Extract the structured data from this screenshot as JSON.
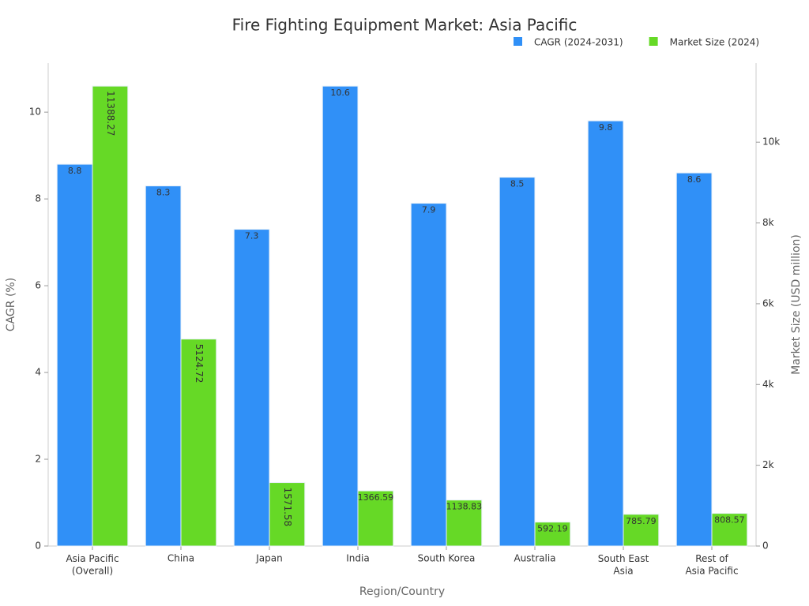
{
  "chart_data": {
    "type": "bar",
    "title": "Fire Fighting Equipment Market: Asia Pacific",
    "x_label": "Region/Country",
    "y_label": "CAGR (%)",
    "y2_label": "Market Size (USD million)",
    "categories": [
      "Asia Pacific\n(Overall)",
      "China",
      "Japan",
      "India",
      "South Korea",
      "Australia",
      "South East\nAsia",
      "Rest of\nAsia Pacific"
    ],
    "series": [
      {
        "name": "CAGR (2024-2031)",
        "color": "#3090f7",
        "values": [
          8.8,
          8.3,
          7.3,
          10.6,
          7.9,
          8.5,
          9.8,
          8.6
        ]
      },
      {
        "name": "Market Size (2024)",
        "color": "#66d926",
        "axis": "y2",
        "values": [
          11388.27,
          5124.72,
          1571.58,
          1366.59,
          1138.83,
          592.19,
          785.79,
          808.57
        ]
      }
    ],
    "ylim": [
      0,
      11.13
    ],
    "yticks": [
      0,
      2,
      4,
      6,
      8,
      10
    ],
    "y2lim": [
      0,
      11957.68
    ],
    "y2ticks": [
      0,
      {
        "value": 2000,
        "label": "2k"
      },
      {
        "value": 4000,
        "label": "4k"
      },
      {
        "value": 6000,
        "label": "6k"
      },
      {
        "value": 8000,
        "label": "8k"
      },
      {
        "value": 10000,
        "label": "10k"
      }
    ],
    "legend": "top-right",
    "grid": false
  }
}
